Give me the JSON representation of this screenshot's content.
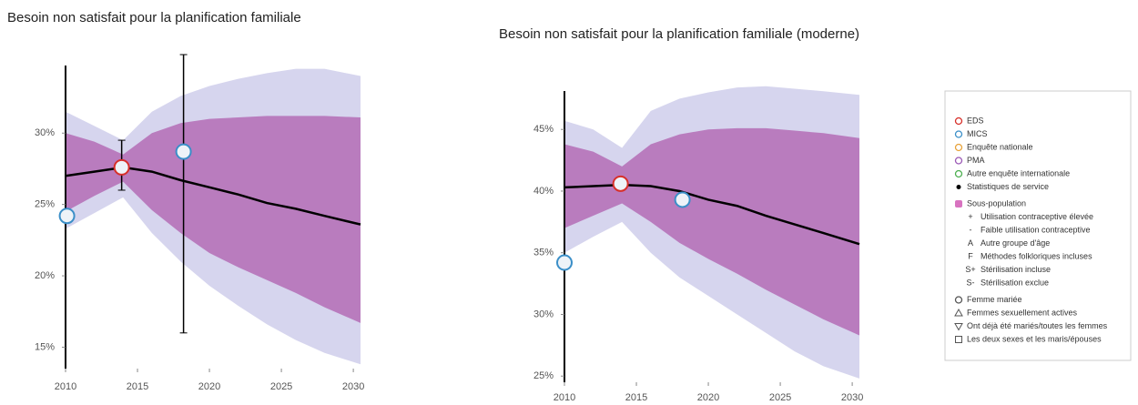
{
  "chart_data": [
    {
      "type": "band",
      "title": "Besoin non satisfait pour la planification familiale",
      "xlim": [
        2010,
        2030.5
      ],
      "ylim": [
        13.5,
        35.5
      ],
      "xticks": [
        2010,
        2015,
        2020,
        2025,
        2030
      ],
      "yticks": [
        {
          "value": 15,
          "label": "15%"
        },
        {
          "value": 20,
          "label": "20%"
        },
        {
          "value": 25,
          "label": "25%"
        },
        {
          "value": 30,
          "label": "30%"
        }
      ],
      "x": [
        2010,
        2012,
        2014,
        2016,
        2018,
        2020,
        2022,
        2024,
        2026,
        2028,
        2030.5
      ],
      "bands": [
        {
          "color": "#d6d5ee",
          "upper": [
            31.5,
            30.5,
            29.5,
            31.5,
            32.6,
            33.3,
            33.8,
            34.2,
            34.5,
            34.5,
            34.0
          ],
          "lower": [
            23.3,
            24.4,
            25.5,
            23.0,
            21.0,
            19.3,
            17.9,
            16.6,
            15.5,
            14.6,
            13.8
          ]
        },
        {
          "color": "#b97cbe",
          "upper": [
            30.0,
            29.4,
            28.5,
            30.0,
            30.7,
            31.0,
            31.1,
            31.2,
            31.2,
            31.2,
            31.1
          ],
          "lower": [
            24.5,
            25.6,
            26.6,
            24.6,
            23.0,
            21.6,
            20.6,
            19.7,
            18.8,
            17.8,
            16.7
          ]
        }
      ],
      "median": {
        "color": "#000000",
        "values": [
          27.0,
          27.3,
          27.6,
          27.3,
          26.7,
          26.2,
          25.7,
          25.1,
          24.7,
          24.2,
          23.6
        ]
      },
      "points": [
        {
          "color": "#d7302a",
          "x": 2013.9,
          "y": 27.6,
          "lower": 26.0,
          "upper": 29.5
        },
        {
          "color": "#3b8fc8",
          "x": 2010.1,
          "y": 24.2
        },
        {
          "color": "#3b8fc8",
          "x": 2018.2,
          "y": 28.7,
          "lower": 16.0,
          "upper": 35.5
        }
      ]
    },
    {
      "type": "band",
      "title": "Besoin non satisfait pour la planification familiale (moderne)",
      "xlim": [
        2010,
        2030.5
      ],
      "ylim": [
        24.5,
        49
      ],
      "xticks": [
        2010,
        2015,
        2020,
        2025,
        2030
      ],
      "yticks": [
        {
          "value": 25,
          "label": "25%"
        },
        {
          "value": 30,
          "label": "30%"
        },
        {
          "value": 35,
          "label": "35%"
        },
        {
          "value": 40,
          "label": "40%"
        },
        {
          "value": 45,
          "label": "45%"
        }
      ],
      "x": [
        2010,
        2012,
        2014,
        2016,
        2018,
        2020,
        2022,
        2024,
        2026,
        2028,
        2030.5
      ],
      "bands": [
        {
          "color": "#d6d5ee",
          "upper": [
            45.7,
            45.0,
            43.5,
            46.5,
            47.5,
            48.0,
            48.4,
            48.5,
            48.3,
            48.1,
            47.8
          ],
          "lower": [
            35.0,
            36.3,
            37.5,
            35.0,
            33.0,
            31.5,
            30.0,
            28.5,
            27.0,
            25.8,
            24.8
          ]
        },
        {
          "color": "#b97cbe",
          "upper": [
            43.8,
            43.2,
            42.0,
            43.8,
            44.6,
            45.0,
            45.1,
            45.1,
            44.9,
            44.7,
            44.3
          ],
          "lower": [
            37.0,
            38.0,
            39.0,
            37.5,
            35.8,
            34.5,
            33.3,
            32.0,
            30.8,
            29.6,
            28.3
          ]
        }
      ],
      "median": {
        "color": "#000000",
        "values": [
          40.3,
          40.4,
          40.5,
          40.4,
          40.0,
          39.3,
          38.8,
          38.0,
          37.3,
          36.6,
          35.7
        ]
      },
      "points": [
        {
          "color": "#d7302a",
          "x": 2013.9,
          "y": 40.6
        },
        {
          "color": "#3b8fc8",
          "x": 2010.0,
          "y": 34.2
        },
        {
          "color": "#3b8fc8",
          "x": 2018.2,
          "y": 39.3
        }
      ]
    }
  ],
  "legend": {
    "items": [
      {
        "shape": "circle",
        "color": "#d7302a",
        "label": "EDS"
      },
      {
        "shape": "circle",
        "color": "#3b8fc8",
        "label": "MICS"
      },
      {
        "shape": "circle",
        "color": "#e8a33a",
        "label": "Enquête nationale"
      },
      {
        "shape": "circle",
        "color": "#9b59b6",
        "label": "PMA"
      },
      {
        "shape": "circle",
        "color": "#4caf50",
        "label": "Autre enquête internationale"
      },
      {
        "shape": "dot",
        "color": "#000000",
        "label": "Statistiques de service"
      },
      {
        "shape": "square",
        "color": "#d873c0",
        "label": "Sous-population"
      },
      {
        "symbol": "+",
        "label": "Utilisation contraceptive élevée"
      },
      {
        "symbol": "-",
        "label": "Faible utilisation contraceptive"
      },
      {
        "symbol": "A",
        "label": "Autre groupe d'âge"
      },
      {
        "symbol": "F",
        "label": "Méthodes folkloriques incluses"
      },
      {
        "symbol": "S+",
        "label": "Stérilisation incluse"
      },
      {
        "symbol": "S-",
        "label": "Stérilisation exclue"
      },
      {
        "shape": "circle",
        "color": "#555555",
        "label": "Femme mariée"
      },
      {
        "shape": "triangle",
        "color": "#555555",
        "label": "Femmes sexuellement actives"
      },
      {
        "shape": "triangle-down",
        "color": "#555555",
        "label": "Ont déjà été mariés/toutes les femmes"
      },
      {
        "shape": "box",
        "color": "#555555",
        "label": "Les deux sexes et les maris/épouses"
      }
    ]
  }
}
